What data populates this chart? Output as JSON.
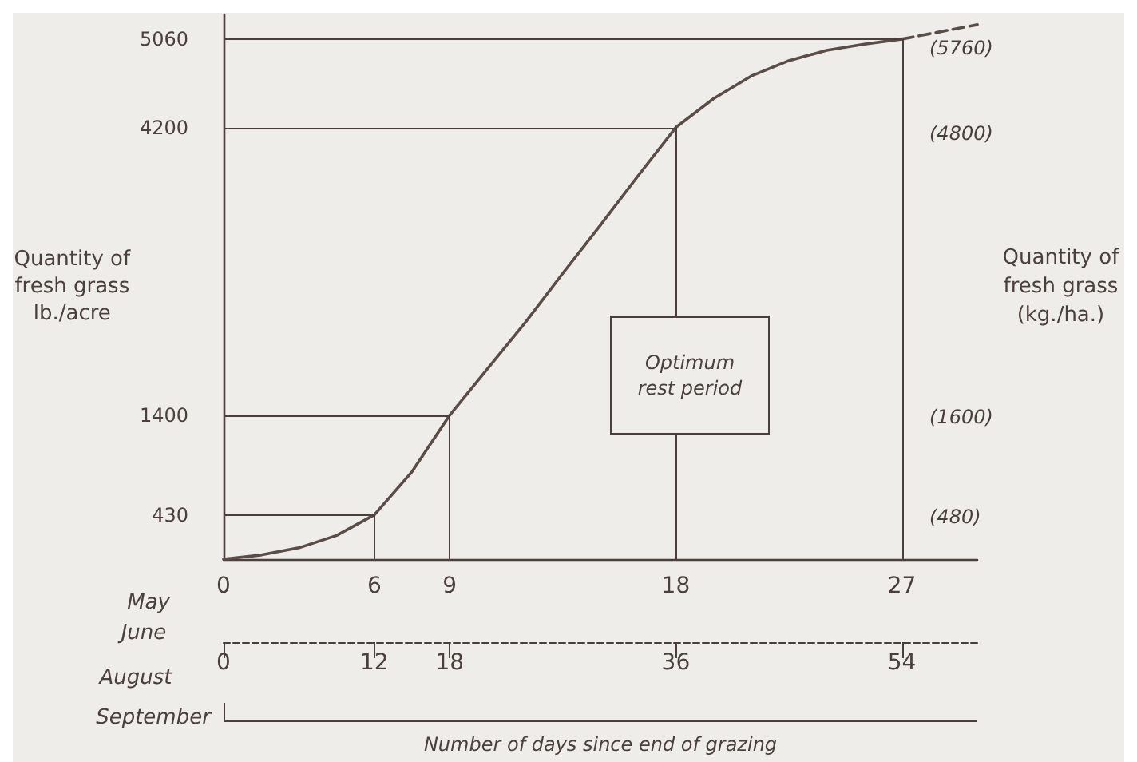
{
  "chart_data": {
    "type": "line",
    "xlabel": "Number of days since end of grazing",
    "ylabel": "Quantity of fresh grass lb./acre",
    "y2label": "Quantity of fresh grass (kg./ha.)",
    "xlim": [
      0,
      30
    ],
    "xticks": [
      0,
      6,
      9,
      18,
      27
    ],
    "x2lim": [
      0,
      60
    ],
    "x2ticks": [
      0,
      12,
      18,
      36,
      54
    ],
    "ylim": [
      0,
      5300
    ],
    "yticks": [
      430,
      1400,
      4200,
      5060
    ],
    "y2lim": [
      0,
      6140
    ],
    "y2ticks": [
      {
        "value": 480,
        "label": "(480)"
      },
      {
        "value": 1600,
        "label": "(1600)"
      },
      {
        "value": 4800,
        "label": "(4800)"
      },
      {
        "value": 5760,
        "label": "(5760)"
      }
    ],
    "series": [
      {
        "color": "#5a4d48",
        "line_style": "solid",
        "x": [
          0,
          1.5,
          3,
          4.5,
          6,
          7.5,
          9,
          10.5,
          12,
          13.5,
          15,
          16.5,
          18,
          19.5,
          21,
          22.5,
          24,
          25.5,
          27
        ],
        "values": [
          0,
          40,
          110,
          230,
          430,
          850,
          1400,
          1850,
          2300,
          2780,
          3250,
          3730,
          4200,
          4480,
          4700,
          4850,
          4950,
          5010,
          5060
        ]
      },
      {
        "color": "#5a4d48",
        "line_style": "dashed",
        "x": [
          27,
          28.5,
          30
        ],
        "values": [
          5060,
          5130,
          5200
        ]
      }
    ],
    "ref_lines": [
      {
        "axis": "y",
        "value": 430
      },
      {
        "axis": "y",
        "value": 1400
      },
      {
        "axis": "y",
        "value": 4200
      },
      {
        "axis": "y",
        "value": 5060
      },
      {
        "axis": "x",
        "value": 6
      },
      {
        "axis": "x",
        "value": 9
      },
      {
        "axis": "x",
        "value": 18
      },
      {
        "axis": "x",
        "value": 27
      }
    ],
    "annotations": [
      "May",
      "June",
      "August",
      "September",
      "Optimum rest period"
    ],
    "marker": "none"
  }
}
